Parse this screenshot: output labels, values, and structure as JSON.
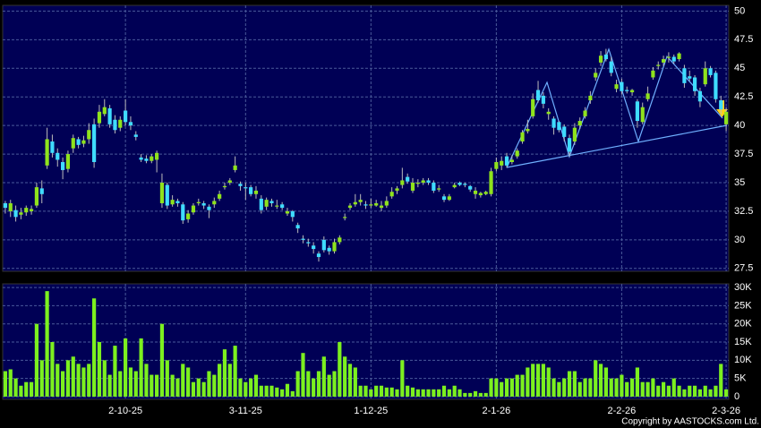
{
  "chart_data": {
    "type": "candlestick",
    "up_color": "#8fe31c",
    "down_color": "#3fdcff",
    "volume_color": "#7cf01f",
    "grid": true,
    "xlim": [
      -0.5,
      138.5
    ],
    "x_ticks": [
      {
        "value": 23,
        "label": "2-10-25"
      },
      {
        "value": 46,
        "label": "3-11-25"
      },
      {
        "value": 70,
        "label": "1-12-25"
      },
      {
        "value": 94,
        "label": "2-1-26"
      },
      {
        "value": 118,
        "label": "2-2-26"
      },
      {
        "value": 138,
        "label": "2-3-26"
      }
    ],
    "ylim": [
      27.25,
      50.5
    ],
    "yticks": [
      27.5,
      30,
      32.5,
      35,
      37.5,
      40,
      42.5,
      45,
      47.5,
      50
    ],
    "volume_ylim": [
      -750,
      31000
    ],
    "volume_ticks": [
      0,
      {
        "value": 5000,
        "label": "5K"
      },
      {
        "value": 10000,
        "label": "10K"
      },
      {
        "value": 15000,
        "label": "15K"
      },
      {
        "value": 20000,
        "label": "20K"
      },
      {
        "value": 25000,
        "label": "25K"
      },
      {
        "value": 30000,
        "label": "30K"
      }
    ],
    "ohlc": [
      [
        33.2,
        33.4,
        32.3,
        32.8
      ],
      [
        32.5,
        33.5,
        32.0,
        33.2
      ],
      [
        32.6,
        33.0,
        31.6,
        32.0
      ],
      [
        32.2,
        32.8,
        31.8,
        32.4
      ],
      [
        32.4,
        33.0,
        32.1,
        32.8
      ],
      [
        32.5,
        33.0,
        32.2,
        32.7
      ],
      [
        33.0,
        35.0,
        32.8,
        34.6
      ],
      [
        34.5,
        35.2,
        33.2,
        34.0
      ],
      [
        36.5,
        39.8,
        36.2,
        38.8
      ],
      [
        38.6,
        39.2,
        37.2,
        37.6
      ],
      [
        37.6,
        38.0,
        36.4,
        37.0
      ],
      [
        36.8,
        37.2,
        35.3,
        36.1
      ],
      [
        36.2,
        37.8,
        35.9,
        37.5
      ],
      [
        38.0,
        39.2,
        37.6,
        38.9
      ],
      [
        38.8,
        39.0,
        38.0,
        38.3
      ],
      [
        38.4,
        39.1,
        38.1,
        38.7
      ],
      [
        38.8,
        40.2,
        38.4,
        39.6
      ],
      [
        40.1,
        40.6,
        36.3,
        36.8
      ],
      [
        40.2,
        41.8,
        39.8,
        41.2
      ],
      [
        41.0,
        42.3,
        40.8,
        41.6
      ],
      [
        41.5,
        41.8,
        39.8,
        40.1
      ],
      [
        40.5,
        40.9,
        39.3,
        39.6
      ],
      [
        39.8,
        40.8,
        39.5,
        40.5
      ],
      [
        41.3,
        42.3,
        40.0,
        40.3
      ],
      [
        40.3,
        40.8,
        39.6,
        40.0
      ],
      [
        39.2,
        39.5,
        38.7,
        39.0
      ],
      [
        37.2,
        37.5,
        36.8,
        37.0
      ],
      [
        37.1,
        37.4,
        36.7,
        36.9
      ],
      [
        36.9,
        37.5,
        36.7,
        37.3
      ],
      [
        37.0,
        37.8,
        35.9,
        37.6
      ],
      [
        33.2,
        35.8,
        32.8,
        35.0
      ],
      [
        34.8,
        35.0,
        32.7,
        33.0
      ],
      [
        33.1,
        33.9,
        32.9,
        33.5
      ],
      [
        33.4,
        33.6,
        32.9,
        33.2
      ],
      [
        33.1,
        33.3,
        31.4,
        31.7
      ],
      [
        31.8,
        32.6,
        31.5,
        32.3
      ],
      [
        32.4,
        33.2,
        32.2,
        33.0
      ],
      [
        33.2,
        33.6,
        33.0,
        33.3
      ],
      [
        33.2,
        33.4,
        32.7,
        33.0
      ],
      [
        32.9,
        33.1,
        31.9,
        32.6
      ],
      [
        33.1,
        33.7,
        32.8,
        33.4
      ],
      [
        33.6,
        34.3,
        33.4,
        34.0
      ],
      [
        34.6,
        35.0,
        34.4,
        34.7
      ],
      [
        35.0,
        35.4,
        34.8,
        35.2
      ],
      [
        36.1,
        37.3,
        35.9,
        36.5
      ],
      [
        34.9,
        35.1,
        34.3,
        34.7
      ],
      [
        34.6,
        35.0,
        33.5,
        34.5
      ],
      [
        34.6,
        34.8,
        33.8,
        34.0
      ],
      [
        34.0,
        34.7,
        33.6,
        34.3
      ],
      [
        33.6,
        33.9,
        32.3,
        32.6
      ],
      [
        32.9,
        33.7,
        32.6,
        33.5
      ],
      [
        33.4,
        33.6,
        32.9,
        33.2
      ],
      [
        33.0,
        33.5,
        32.7,
        33.0
      ],
      [
        33.1,
        33.3,
        32.6,
        32.8
      ],
      [
        32.3,
        32.8,
        32.1,
        32.5
      ],
      [
        32.5,
        32.6,
        31.6,
        32.0
      ],
      [
        31.3,
        31.5,
        30.6,
        31.0
      ],
      [
        30.1,
        30.4,
        29.7,
        30.0
      ],
      [
        29.8,
        30.1,
        29.4,
        29.7
      ],
      [
        29.5,
        29.8,
        28.8,
        29.2
      ],
      [
        28.8,
        29.0,
        28.1,
        28.5
      ],
      [
        30.0,
        30.3,
        28.9,
        29.1
      ],
      [
        29.3,
        29.5,
        28.7,
        29.0
      ],
      [
        29.0,
        30.1,
        28.8,
        29.8
      ],
      [
        29.8,
        30.4,
        29.6,
        30.2
      ],
      [
        32.0,
        32.3,
        31.7,
        32.0
      ],
      [
        32.8,
        33.2,
        32.6,
        33.0
      ],
      [
        33.1,
        34.0,
        32.9,
        33.3
      ],
      [
        33.3,
        34.0,
        33.0,
        33.5
      ],
      [
        33.1,
        33.4,
        32.7,
        33.0
      ],
      [
        33.0,
        33.6,
        32.8,
        33.1
      ],
      [
        33.0,
        33.5,
        32.9,
        33.2
      ],
      [
        32.8,
        33.4,
        32.5,
        33.0
      ],
      [
        33.0,
        33.8,
        32.8,
        33.4
      ],
      [
        33.8,
        34.6,
        33.6,
        34.2
      ],
      [
        34.3,
        34.7,
        34.0,
        34.5
      ],
      [
        34.8,
        36.3,
        34.5,
        35.2
      ],
      [
        35.5,
        35.8,
        34.9,
        35.1
      ],
      [
        34.3,
        35.4,
        34.1,
        35.0
      ],
      [
        34.9,
        35.3,
        34.6,
        35.0
      ],
      [
        35.0,
        35.4,
        34.8,
        35.2
      ],
      [
        35.2,
        35.4,
        34.8,
        35.0
      ],
      [
        35.0,
        35.2,
        34.1,
        34.3
      ],
      [
        34.4,
        34.8,
        34.2,
        34.5
      ],
      [
        33.8,
        34.0,
        33.3,
        33.5
      ],
      [
        33.5,
        34.0,
        33.4,
        33.8
      ],
      [
        34.6,
        35.0,
        34.5,
        34.8
      ],
      [
        35.0,
        35.1,
        34.7,
        34.8
      ],
      [
        34.9,
        35.0,
        34.6,
        34.8
      ],
      [
        34.7,
        34.8,
        34.2,
        34.4
      ],
      [
        34.0,
        34.6,
        33.6,
        34.3
      ],
      [
        33.9,
        34.2,
        33.7,
        34.1
      ],
      [
        34.0,
        34.3,
        33.9,
        34.2
      ],
      [
        34.0,
        36.3,
        33.8,
        36.0
      ],
      [
        36.2,
        37.2,
        36.0,
        36.8
      ],
      [
        36.5,
        37.3,
        36.1,
        36.9
      ],
      [
        37.3,
        37.6,
        36.3,
        36.5
      ],
      [
        36.8,
        37.4,
        36.6,
        37.0
      ],
      [
        37.3,
        38.0,
        37.1,
        37.8
      ],
      [
        38.6,
        39.6,
        38.4,
        39.4
      ],
      [
        39.5,
        40.5,
        39.3,
        39.7
      ],
      [
        40.8,
        42.8,
        40.6,
        42.3
      ],
      [
        43.1,
        43.9,
        42.0,
        42.2
      ],
      [
        42.6,
        42.9,
        41.5,
        41.9
      ],
      [
        41.0,
        41.5,
        40.5,
        41.2
      ],
      [
        40.6,
        40.8,
        39.2,
        39.8
      ],
      [
        40.3,
        40.4,
        39.4,
        39.6
      ],
      [
        39.9,
        40.1,
        38.6,
        39.0
      ],
      [
        38.9,
        39.2,
        37.3,
        37.7
      ],
      [
        38.6,
        40.2,
        38.3,
        39.8
      ],
      [
        40.0,
        40.7,
        39.7,
        40.4
      ],
      [
        40.8,
        41.6,
        40.6,
        41.3
      ],
      [
        42.2,
        43.0,
        41.9,
        42.6
      ],
      [
        44.2,
        45.0,
        43.9,
        44.6
      ],
      [
        45.5,
        46.5,
        45.2,
        46.1
      ],
      [
        46.2,
        46.7,
        45.6,
        45.8
      ],
      [
        45.6,
        46.0,
        44.3,
        44.6
      ],
      [
        43.2,
        44.0,
        42.9,
        43.6
      ],
      [
        43.8,
        44.1,
        42.7,
        43.0
      ],
      [
        43.1,
        43.4,
        42.8,
        43.0
      ],
      [
        42.9,
        43.2,
        42.6,
        43.1
      ],
      [
        42.1,
        42.3,
        39.8,
        40.4
      ],
      [
        40.3,
        42.0,
        40.1,
        41.6
      ],
      [
        42.3,
        43.4,
        42.1,
        42.8
      ],
      [
        44.2,
        45.1,
        44.0,
        44.8
      ],
      [
        45.2,
        45.6,
        44.9,
        45.3
      ],
      [
        45.5,
        46.1,
        45.2,
        45.8
      ],
      [
        46.0,
        46.4,
        45.5,
        46.0
      ],
      [
        46.0,
        46.2,
        45.4,
        45.6
      ],
      [
        45.8,
        46.4,
        45.6,
        46.3
      ],
      [
        45.0,
        45.3,
        43.3,
        43.7
      ],
      [
        44.3,
        44.8,
        43.9,
        44.1
      ],
      [
        44.2,
        44.4,
        42.6,
        43.0
      ],
      [
        43.0,
        43.3,
        41.6,
        42.1
      ],
      [
        43.6,
        45.6,
        43.4,
        45.0
      ],
      [
        45.0,
        45.2,
        44.2,
        44.4
      ],
      [
        44.6,
        44.8,
        42.0,
        42.3
      ],
      [
        42.2,
        42.6,
        41.0,
        41.4
      ],
      [
        40.1,
        41.6,
        39.5,
        41.2
      ]
    ],
    "volume": [
      7000,
      7500,
      5000,
      3000,
      4000,
      4000,
      20000,
      10000,
      29000,
      15000,
      9000,
      7000,
      10000,
      11000,
      9000,
      8000,
      9000,
      27000,
      15000,
      10000,
      6000,
      14000,
      7000,
      16000,
      8000,
      7000,
      16000,
      9000,
      6000,
      6000,
      20000,
      10000,
      6000,
      5000,
      9000,
      8000,
      4000,
      5000,
      4000,
      7000,
      6000,
      9000,
      13000,
      9000,
      14000,
      5000,
      4000,
      5000,
      6000,
      3000,
      3000,
      3000,
      2500,
      2000,
      3500,
      1500,
      7000,
      12000,
      7000,
      5000,
      7000,
      11000,
      6000,
      7000,
      15000,
      11000,
      9000,
      8000,
      3000,
      3000,
      2000,
      3000,
      3000,
      2500,
      2500,
      2000,
      10000,
      3000,
      2500,
      2000,
      2000,
      2000,
      2000,
      2000,
      3000,
      2000,
      3000,
      2000,
      1000,
      1000,
      1500,
      1000,
      1000,
      5000,
      5000,
      4000,
      5000,
      5000,
      6000,
      6000,
      8000,
      9000,
      9000,
      9000,
      8000,
      5000,
      4000,
      5000,
      7000,
      7000,
      4000,
      5000,
      5000,
      10000,
      9000,
      8000,
      5000,
      5000,
      6000,
      4000,
      5000,
      8000,
      4000,
      4000,
      5000,
      3000,
      4000,
      3000,
      5000,
      3000,
      2000,
      3000,
      3000,
      2000,
      3000,
      2000,
      3000,
      9000,
      2000
    ]
  },
  "copyright": "Copyright by AASTOCKS.com Ltd."
}
